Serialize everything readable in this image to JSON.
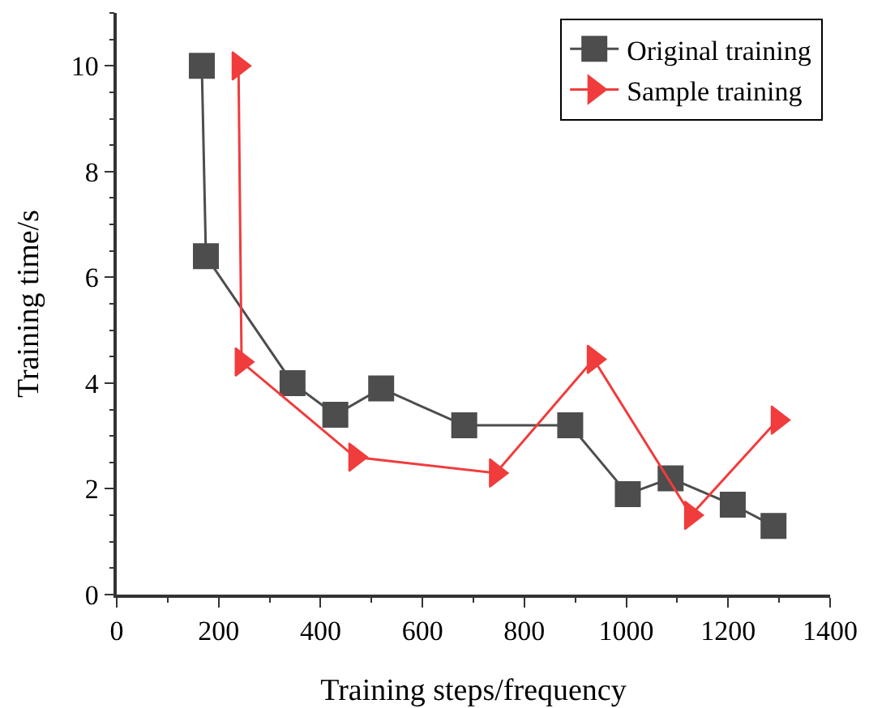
{
  "chart_data": {
    "type": "line",
    "xlabel": "Training steps/frequency",
    "ylabel": "Training time/s",
    "xlim": [
      0,
      1400
    ],
    "xticks": [
      0,
      200,
      400,
      600,
      800,
      1000,
      1200,
      1400
    ],
    "ylim": [
      0,
      11
    ],
    "yticks": [
      0,
      2,
      4,
      6,
      8,
      10
    ],
    "grid": false,
    "legend": "top right",
    "line_style": "solid",
    "series": [
      {
        "name": "Original training",
        "color": "#4d4d4d",
        "marker": "square",
        "x": [
          167,
          175,
          345,
          429,
          519,
          682,
          890,
          1003,
          1087,
          1209,
          1289
        ],
        "values": [
          10,
          6.4,
          4.0,
          3.4,
          3.9,
          3.2,
          3.2,
          1.9,
          2.2,
          1.7,
          1.3
        ]
      },
      {
        "name": "Sample training",
        "color": "#f03c3c",
        "marker": "triangle",
        "x": [
          239,
          245,
          468,
          744,
          936,
          1127,
          1297
        ],
        "values": [
          10,
          4.4,
          2.6,
          2.3,
          4.45,
          1.5,
          3.3
        ]
      }
    ]
  }
}
